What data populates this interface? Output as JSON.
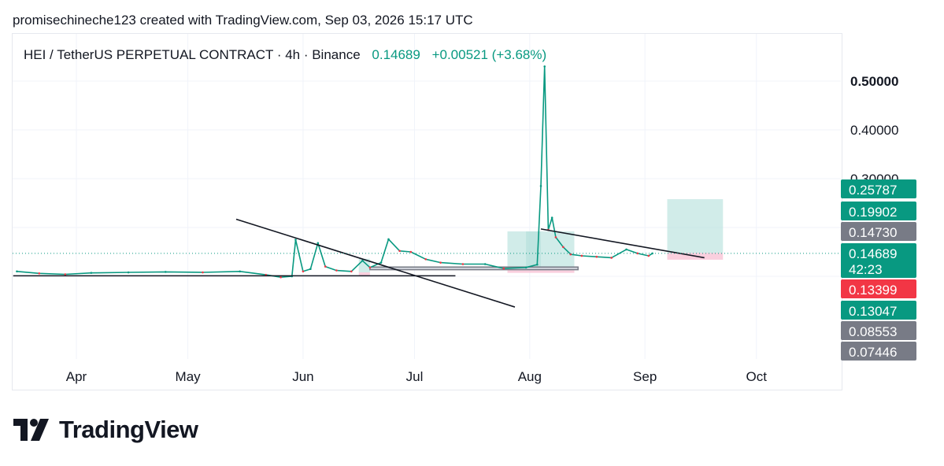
{
  "header": {
    "caption": "promisechineche123 created with TradingView.com, Sep 03, 2026 15:17 UTC"
  },
  "legend": {
    "symbol": "HEI / TetherUS PERPETUAL CONTRACT · 4h · Binance",
    "price": "0.14689",
    "change": "+0.00521 (+3.68%)"
  },
  "brand": {
    "name": "TradingView",
    "icon": "tradingview-logo-icon"
  },
  "colors": {
    "up": "#089981",
    "down": "#f23645",
    "gray": "#787b86",
    "target_zone": "#b2dfdb",
    "stop_zone": "#f8bbd0",
    "line": "#131722"
  },
  "chart_data": {
    "type": "line",
    "title": "HEI / TetherUS PERPETUAL CONTRACT · 4h · Binance",
    "xlabel": "",
    "ylabel": "",
    "x_ticks": [
      "Apr",
      "May",
      "Jun",
      "Jul",
      "Aug",
      "Sep",
      "Oct"
    ],
    "y_ticks": [
      "0.50000",
      "0.40000",
      "0.30000"
    ],
    "ylim": [
      0.07,
      0.54
    ],
    "grid": true,
    "series": [
      {
        "x": [
          "2026-03-16",
          "2026-03-22",
          "2026-03-29",
          "2026-04-05",
          "2026-04-15",
          "2026-04-25",
          "2026-05-05",
          "2026-05-15",
          "2026-05-22",
          "2026-05-26",
          "2026-05-29",
          "2026-05-30",
          "2026-06-01",
          "2026-06-03",
          "2026-06-05",
          "2026-06-07",
          "2026-06-10",
          "2026-06-14",
          "2026-06-17",
          "2026-06-19",
          "2026-06-22",
          "2026-06-24",
          "2026-06-27",
          "2026-06-30",
          "2026-07-04",
          "2026-07-08",
          "2026-07-14",
          "2026-07-20",
          "2026-07-25",
          "2026-07-31",
          "2026-08-03",
          "2026-08-04",
          "2026-08-05",
          "2026-08-06",
          "2026-08-07",
          "2026-08-08",
          "2026-08-10",
          "2026-08-12",
          "2026-08-15",
          "2026-08-19",
          "2026-08-23",
          "2026-08-27",
          "2026-08-30",
          "2026-09-02",
          "2026-09-03"
        ],
        "values": [
          0.11,
          0.106,
          0.104,
          0.107,
          0.108,
          0.109,
          0.108,
          0.11,
          0.103,
          0.098,
          0.1,
          0.175,
          0.11,
          0.115,
          0.168,
          0.12,
          0.112,
          0.11,
          0.132,
          0.118,
          0.128,
          0.176,
          0.152,
          0.15,
          0.135,
          0.128,
          0.125,
          0.125,
          0.116,
          0.118,
          0.124,
          0.285,
          0.53,
          0.195,
          0.22,
          0.18,
          0.16,
          0.145,
          0.142,
          0.14,
          0.138,
          0.155,
          0.147,
          0.142,
          0.14689
        ]
      }
    ],
    "price_tags": [
      {
        "label": "0.25787",
        "value": 0.25787,
        "color": "#089981"
      },
      {
        "label": "0.19902",
        "value": 0.19902,
        "color": "#089981"
      },
      {
        "label": "0.14730",
        "value": 0.1473,
        "color": "#787b86"
      },
      {
        "label": "0.14689",
        "sublabel": "42:23",
        "value": 0.14689,
        "color": "#089981"
      },
      {
        "label": "0.13399",
        "value": 0.13399,
        "color": "#f23645"
      },
      {
        "label": "0.13047",
        "value": 0.13047,
        "color": "#089981"
      },
      {
        "label": "0.08553",
        "value": 0.08553,
        "color": "#787b86"
      },
      {
        "label": "0.07446",
        "value": 0.07446,
        "color": "#787b86"
      }
    ],
    "trendlines": [
      {
        "from": [
          "2026-05-14",
          0.217
        ],
        "to": [
          "2026-07-28",
          0.037
        ]
      },
      {
        "from": [
          "2026-03-15",
          0.101
        ],
        "to": [
          "2026-07-12",
          0.101
        ]
      },
      {
        "from": [
          "2026-08-04",
          0.197
        ],
        "to": [
          "2026-09-17",
          0.138
        ]
      }
    ],
    "zones": [
      {
        "kind": "target",
        "x": [
          "2026-06-16",
          "2026-06-19"
        ],
        "y": [
          0.108,
          0.136
        ]
      },
      {
        "kind": "stop",
        "x": [
          "2026-06-16",
          "2026-06-19"
        ],
        "y": [
          0.102,
          0.108
        ]
      },
      {
        "kind": "target",
        "x": [
          "2026-07-26",
          "2026-08-13"
        ],
        "y": [
          0.118,
          0.192
        ]
      },
      {
        "kind": "target",
        "x": [
          "2026-07-31",
          "2026-08-04"
        ],
        "y": [
          0.118,
          0.192
        ]
      },
      {
        "kind": "stop",
        "x": [
          "2026-07-26",
          "2026-08-13"
        ],
        "y": [
          0.107,
          0.112
        ]
      },
      {
        "kind": "target",
        "x": [
          "2026-09-07",
          "2026-09-22"
        ],
        "y": [
          0.148,
          0.258
        ]
      },
      {
        "kind": "stop",
        "x": [
          "2026-09-07",
          "2026-09-22"
        ],
        "y": [
          0.134,
          0.148
        ]
      }
    ],
    "support_bars": [
      {
        "x": [
          "2026-06-19",
          "2026-08-14"
        ],
        "y": [
          0.1135,
          0.119
        ]
      }
    ],
    "last_price": 0.14689
  }
}
